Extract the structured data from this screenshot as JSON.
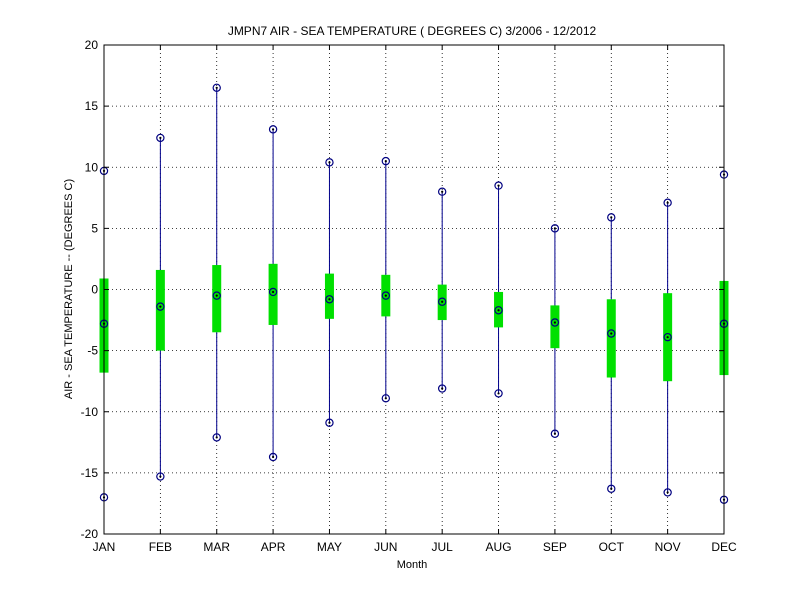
{
  "chart_data": {
    "type": "box",
    "title": "JMPN7  AIR - SEA TEMPERATURE ( DEGREES C) 3/2006 - 12/2012",
    "xlabel": "Month",
    "ylabel": "AIR - SEA TEMPERATURE -- (DEGREES C)",
    "ylim": [
      -20,
      20
    ],
    "yticks": [
      -20,
      -15,
      -10,
      -5,
      0,
      5,
      10,
      15,
      20
    ],
    "grid": true,
    "categories": [
      "JAN",
      "FEB",
      "MAR",
      "APR",
      "MAY",
      "JUN",
      "JUL",
      "AUG",
      "SEP",
      "OCT",
      "NOV",
      "DEC"
    ],
    "series": [
      {
        "min": [
          -17.0,
          -15.3,
          -12.1,
          -13.7,
          -10.9,
          -8.9,
          -8.1,
          -8.5,
          -11.8,
          -16.3,
          -16.6,
          -17.2
        ],
        "q1": [
          -6.8,
          -5.0,
          -3.5,
          -2.9,
          -2.4,
          -2.2,
          -2.5,
          -3.1,
          -4.8,
          -7.2,
          -7.5,
          -7.0
        ],
        "median": [
          -2.8,
          -1.4,
          -0.5,
          -0.2,
          -0.8,
          -0.5,
          -1.0,
          -1.7,
          -2.7,
          -3.6,
          -3.9,
          -2.8
        ],
        "q3": [
          0.9,
          1.6,
          2.0,
          2.1,
          1.3,
          1.2,
          0.4,
          -0.2,
          -1.3,
          -0.8,
          -0.3,
          0.7
        ],
        "max": [
          9.7,
          12.4,
          16.5,
          13.1,
          10.4,
          10.5,
          8.0,
          8.5,
          5.0,
          5.9,
          7.1,
          9.4
        ]
      }
    ],
    "colors": {
      "whisker": "#00008b",
      "box": "#00e000",
      "marker": "#000080",
      "grid": "#000000"
    }
  }
}
